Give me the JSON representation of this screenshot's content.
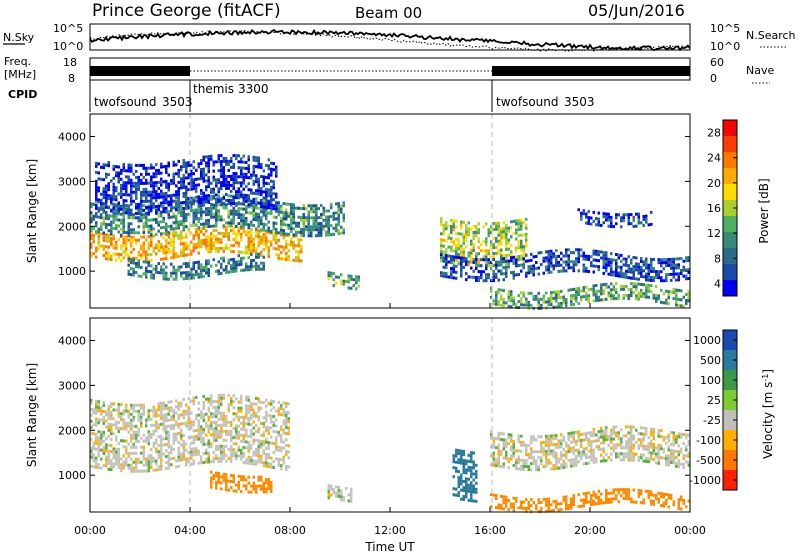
{
  "header": {
    "station": "Prince George (fitACF)",
    "beam": "Beam 00",
    "date": "05/Jun/2016"
  },
  "summary_panel": {
    "nsky_label": "N.Sky",
    "nsky_ticks": [
      "10^5",
      "10^0"
    ],
    "nsearch_label": "N.Search",
    "nsearch_ticks": [
      "10^5",
      "10^0"
    ],
    "freq_label_1": "Freq.",
    "freq_label_2": "[MHz]",
    "freq_ticks": [
      "18",
      "8"
    ],
    "nave_label": "Nave",
    "nave_ticks": [
      "60",
      "0"
    ],
    "cpid_label": "CPID",
    "cpid_segments": [
      {
        "name": "twofsound",
        "id": "3503",
        "start_hr": 0,
        "end_hr": 4
      },
      {
        "name": "themis",
        "id": "3300",
        "start_hr": 4,
        "end_hr": 16
      },
      {
        "name": "twofsound",
        "id": "3503",
        "start_hr": 16,
        "end_hr": 24
      }
    ]
  },
  "power_panel": {
    "ylabel": "Slant Range [km]",
    "yticks": [
      "4000",
      "3000",
      "2000",
      "1000"
    ],
    "cbar_label": "Power [dB]",
    "cbar_ticks": [
      "28",
      "24",
      "20",
      "16",
      "12",
      "8",
      "4"
    ],
    "cbar_colors": [
      "#ff0000",
      "#ff3c00",
      "#ff7800",
      "#ffaa00",
      "#ffdc00",
      "#a8d030",
      "#4cb060",
      "#3a8a7a",
      "#2a6a8a",
      "#1a4aa8",
      "#0000ff"
    ]
  },
  "velocity_panel": {
    "ylabel": "Slant Range [km]",
    "yticks": [
      "4000",
      "3000",
      "2000",
      "1000"
    ],
    "cbar_label": "Velocity [m s^-1]",
    "cbar_ticks": [
      "1000",
      "500",
      "100",
      "25",
      "-25",
      "-100",
      "-500",
      "-1000"
    ],
    "cbar_colors": [
      "#1a4ab0",
      "#2a7aa0",
      "#3a9a4a",
      "#7acc30",
      "#c0c0b8",
      "#ffb000",
      "#ff7800",
      "#ff2000"
    ]
  },
  "xaxis": {
    "label": "Time UT",
    "ticks": [
      "00:00",
      "04:00",
      "08:00",
      "12:00",
      "16:00",
      "20:00",
      "00:00"
    ]
  },
  "chart_data": [
    {
      "type": "heatmap",
      "title": "Power",
      "x_range_hours": [
        0,
        24
      ],
      "y_range_km": [
        180,
        4500
      ],
      "color_scale": {
        "min": 0,
        "max": 30,
        "unit": "dB"
      },
      "features": [
        {
          "t0": 0,
          "t1": 8.5,
          "r0": 1350,
          "r1": 1900,
          "power": 24
        },
        {
          "t0": 0,
          "t1": 10.2,
          "r0": 1900,
          "r1": 2600,
          "power": 12
        },
        {
          "t0": 0.2,
          "t1": 7.5,
          "r0": 2400,
          "r1": 3500,
          "power": 5
        },
        {
          "t0": 1.5,
          "t1": 7.0,
          "r0": 900,
          "r1": 1300,
          "power": 11
        },
        {
          "t0": 9.5,
          "t1": 10.8,
          "r0": 700,
          "r1": 1000,
          "power": 16
        },
        {
          "t0": 14.0,
          "t1": 17.5,
          "r0": 1200,
          "r1": 2200,
          "power": 18
        },
        {
          "t0": 14.0,
          "t1": 24,
          "r0": 900,
          "r1": 1400,
          "power": 7
        },
        {
          "t0": 16.0,
          "t1": 24,
          "r0": 300,
          "r1": 650,
          "power": 14
        },
        {
          "t0": 19.5,
          "t1": 22.5,
          "r0": 2100,
          "r1": 2400,
          "power": 6
        }
      ]
    },
    {
      "type": "heatmap",
      "title": "Velocity",
      "x_range_hours": [
        0,
        24
      ],
      "y_range_km": [
        180,
        4500
      ],
      "color_scale": {
        "min": -1000,
        "max": 1000,
        "unit": "m s^-1"
      },
      "features": [
        {
          "t0": 0,
          "t1": 8.0,
          "r0": 1200,
          "r1": 2700,
          "velocity": 0
        },
        {
          "t0": 4.8,
          "t1": 7.3,
          "r0": 700,
          "r1": 1100,
          "velocity": -300
        },
        {
          "t0": 9.5,
          "t1": 10.5,
          "r0": 500,
          "r1": 800,
          "velocity": 0
        },
        {
          "t0": 14.5,
          "t1": 15.5,
          "r0": 500,
          "r1": 1600,
          "velocity": 400
        },
        {
          "t0": 16.0,
          "t1": 24,
          "r0": 1200,
          "r1": 2000,
          "velocity": 0
        },
        {
          "t0": 16.0,
          "t1": 24,
          "r0": 300,
          "r1": 600,
          "velocity": -150
        }
      ]
    }
  ]
}
